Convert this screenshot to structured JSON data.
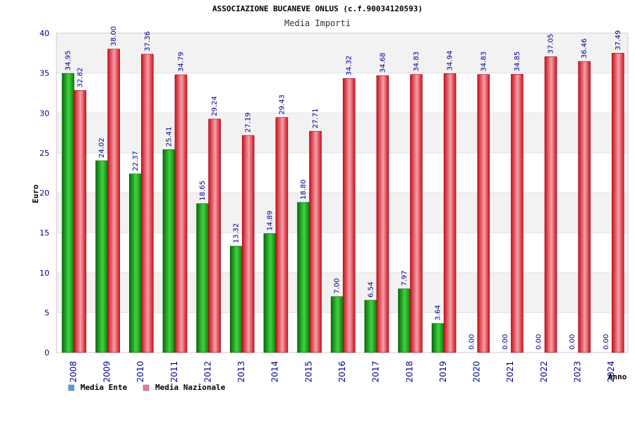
{
  "chart_data": {
    "type": "bar",
    "title": "ASSOCIAZIONE BUCANEVE ONLUS (c.f.90034120593)",
    "subtitle": "Media Importi",
    "xlabel": "Anno",
    "ylabel": "Euro",
    "ylim": [
      0,
      40
    ],
    "yticks": [
      "0",
      "5",
      "10",
      "15",
      "20",
      "25",
      "30",
      "35",
      "40"
    ],
    "categories": [
      "2008",
      "2009",
      "2010",
      "2011",
      "2012",
      "2013",
      "2014",
      "2015",
      "2016",
      "2017",
      "2018",
      "2019",
      "2020",
      "2021",
      "2022",
      "2023",
      "2024"
    ],
    "series": [
      {
        "name": "Media Ente",
        "color": "#1a9e1a",
        "values": [
          34.95,
          24.02,
          22.37,
          25.41,
          18.65,
          13.32,
          14.89,
          18.8,
          7.0,
          6.54,
          7.97,
          3.64,
          0.0,
          0.0,
          0.0,
          0.0,
          0.0
        ],
        "labels": [
          "34.95",
          "24.02",
          "22.37",
          "25.41",
          "18.65",
          "13.32",
          "14.89",
          "18.80",
          "7.00",
          "6.54",
          "7.97",
          "3.64",
          "0.00",
          "0.00",
          "0.00",
          "0.00",
          "0.00"
        ]
      },
      {
        "name": "Media Nazionale",
        "color": "#e21f2e",
        "values": [
          32.82,
          38.0,
          37.36,
          34.79,
          29.24,
          27.19,
          29.43,
          27.71,
          34.32,
          34.68,
          34.83,
          34.94,
          34.83,
          34.85,
          37.05,
          36.46,
          37.49
        ],
        "labels": [
          "32.82",
          "38.00",
          "37.36",
          "34.79",
          "29.24",
          "27.19",
          "29.43",
          "27.71",
          "34.32",
          "34.68",
          "34.83",
          "34.94",
          "34.83",
          "34.85",
          "37.05",
          "36.46",
          "37.49"
        ]
      }
    ],
    "grid": true,
    "legend_position": "bottom-left",
    "legend_colors": [
      "#5b9bd5",
      "#e377a8"
    ]
  }
}
